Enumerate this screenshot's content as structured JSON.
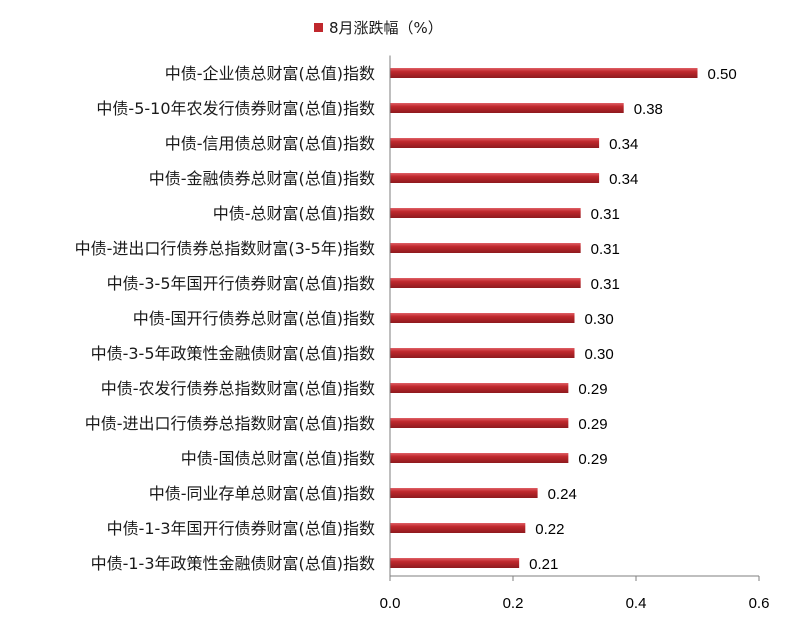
{
  "chart_data": {
    "type": "bar",
    "orientation": "horizontal",
    "legend": {
      "label": "8月涨跌幅（%）",
      "position": "top"
    },
    "categories": [
      "中债-企业债总财富(总值)指数",
      "中债-5-10年农发行债券财富(总值)指数",
      "中债-信用债总财富(总值)指数",
      "中债-金融债券总财富(总值)指数",
      "中债-总财富(总值)指数",
      "中债-进出口行债券总指数财富(3-5年)指数",
      "中债-3-5年国开行债券财富(总值)指数",
      "中债-国开行债券总财富(总值)指数",
      "中债-3-5年政策性金融债财富(总值)指数",
      "中债-农发行债券总指数财富(总值)指数",
      "中债-进出口行债券总指数财富(总值)指数",
      "中债-国债总财富(总值)指数",
      "中债-同业存单总财富(总值)指数",
      "中债-1-3年国开行债券财富(总值)指数",
      "中债-1-3年政策性金融债财富(总值)指数"
    ],
    "values": [
      0.5,
      0.38,
      0.34,
      0.34,
      0.31,
      0.31,
      0.31,
      0.3,
      0.3,
      0.29,
      0.29,
      0.29,
      0.24,
      0.22,
      0.21
    ],
    "value_labels": [
      "0.50",
      "0.38",
      "0.34",
      "0.34",
      "0.31",
      "0.31",
      "0.31",
      "0.30",
      "0.30",
      "0.29",
      "0.29",
      "0.29",
      "0.24",
      "0.22",
      "0.21"
    ],
    "xlim": [
      0,
      0.6
    ],
    "xticks": [
      0,
      0.2,
      0.4,
      0.6
    ],
    "xtick_labels": [
      "0.0",
      "0.2",
      "0.4",
      "0.6"
    ],
    "grid": false,
    "colors": {
      "bar": "#c0282d",
      "bar_highlight": "#e06066",
      "bar_shadow": "#8e1a1e",
      "axis": "#7f7f7f"
    }
  }
}
